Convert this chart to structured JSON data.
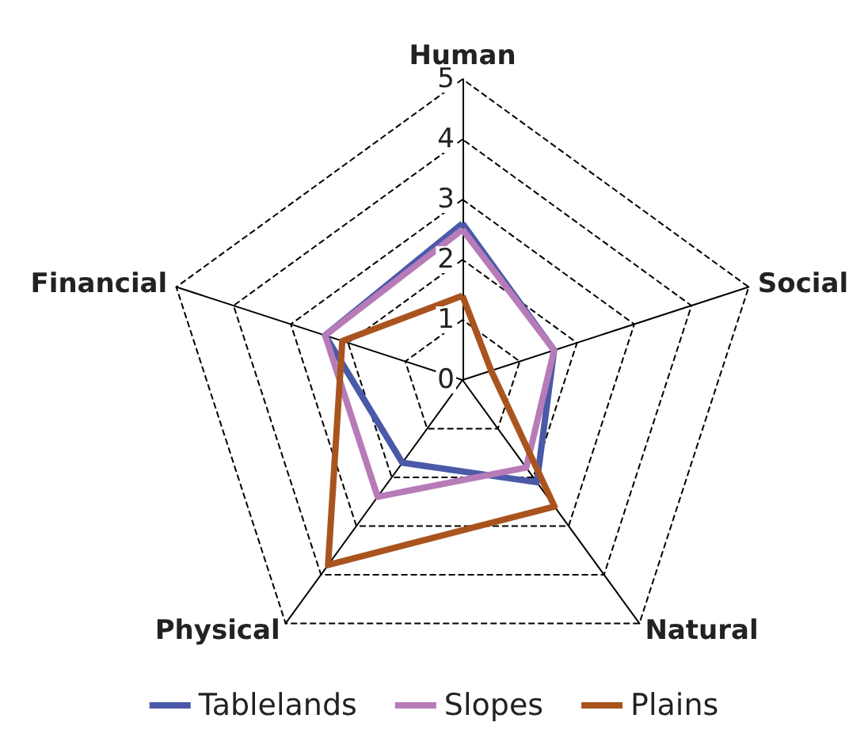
{
  "chart_data": {
    "type": "radar",
    "categories": [
      "Human",
      "Social",
      "Natural",
      "Physical",
      "Financial"
    ],
    "series": [
      {
        "name": "Tablelands",
        "color": "#4a5aa8",
        "values": [
          2.6,
          1.6,
          2.1,
          1.7,
          2.4
        ]
      },
      {
        "name": "Slopes",
        "color": "#b77bb8",
        "values": [
          2.5,
          1.6,
          1.8,
          2.4,
          2.4
        ]
      },
      {
        "name": "Plains",
        "color": "#a9541f",
        "values": [
          1.4,
          0.5,
          2.6,
          3.8,
          2.1
        ]
      }
    ],
    "ylim": [
      0,
      5
    ],
    "yticks": [
      0,
      1,
      2,
      3,
      4,
      5
    ],
    "grid": true,
    "legend": "bottom",
    "marker": "none",
    "line_style": "solid"
  }
}
